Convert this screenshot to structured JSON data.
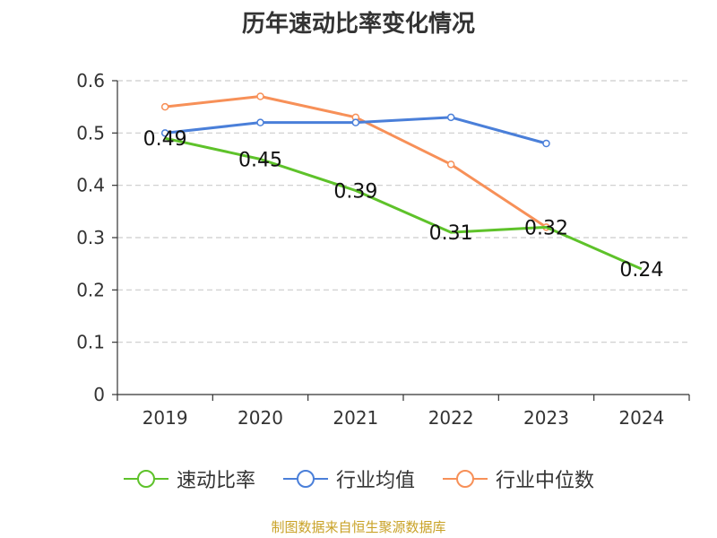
{
  "chart_data": {
    "type": "line",
    "title": "历年速动比率变化情况",
    "categories": [
      "2019",
      "2020",
      "2021",
      "2022",
      "2023",
      "2024"
    ],
    "ylim": [
      0,
      0.6
    ],
    "yticks": [
      "0",
      "0.1",
      "0.2",
      "0.3",
      "0.4",
      "0.5",
      "0.6"
    ],
    "grid": true,
    "legend_position": "bottom",
    "series": [
      {
        "name": "速动比率",
        "color": "#5ec22a",
        "values": [
          0.49,
          0.45,
          0.39,
          0.31,
          0.32,
          0.24
        ],
        "labels": [
          "0.49",
          "0.45",
          "0.39",
          "0.31",
          "0.32",
          "0.24"
        ]
      },
      {
        "name": "行业均值",
        "color": "#4a7fd9",
        "values": [
          0.5,
          0.52,
          0.52,
          0.53,
          0.48,
          null
        ]
      },
      {
        "name": "行业中位数",
        "color": "#f79058",
        "values": [
          0.55,
          0.57,
          0.53,
          0.44,
          0.32,
          null
        ]
      }
    ]
  },
  "source": "制图数据来自恒生聚源数据库"
}
